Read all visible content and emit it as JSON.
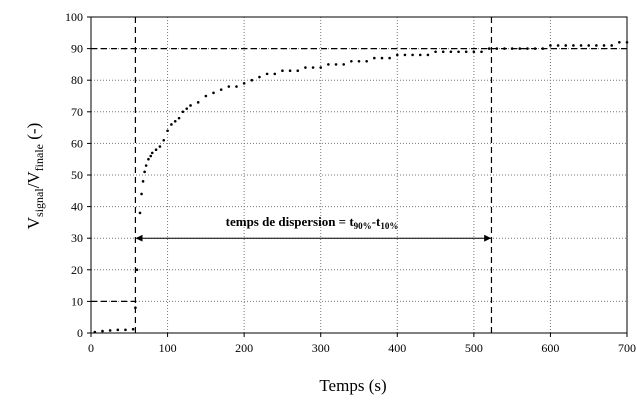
{
  "chart_data": {
    "type": "scatter",
    "title": "",
    "xlabel": "Temps (s)",
    "ylabel": {
      "main": "V",
      "sub1": "signal",
      "sep": "/V",
      "sub2": "finale",
      "unit": " (-)"
    },
    "xlim": [
      0,
      700
    ],
    "ylim": [
      0,
      100
    ],
    "x_ticks": [
      0,
      100,
      200,
      300,
      400,
      500,
      600,
      700
    ],
    "y_ticks": [
      0,
      10,
      20,
      30,
      40,
      50,
      60,
      70,
      80,
      90,
      100
    ],
    "grid": "dotted",
    "legend": "none",
    "series": [
      {
        "marker_color": "#000000",
        "x": [
          5,
          15,
          25,
          35,
          45,
          55,
          58,
          60,
          62,
          64,
          66,
          68,
          70,
          72,
          75,
          78,
          80,
          85,
          90,
          95,
          100,
          105,
          110,
          115,
          120,
          125,
          130,
          140,
          150,
          160,
          170,
          180,
          190,
          200,
          210,
          220,
          230,
          240,
          250,
          260,
          270,
          280,
          290,
          300,
          310,
          320,
          330,
          340,
          350,
          360,
          370,
          380,
          390,
          400,
          410,
          420,
          430,
          440,
          450,
          460,
          470,
          480,
          490,
          500,
          510,
          520,
          530,
          540,
          550,
          560,
          570,
          580,
          590,
          600,
          610,
          620,
          630,
          640,
          650,
          660,
          670,
          680,
          690,
          700
        ],
        "y": [
          0.3,
          0.6,
          0.8,
          1.0,
          1.0,
          1.2,
          8,
          20,
          30,
          38,
          44,
          48,
          51,
          53,
          55,
          56,
          57,
          58,
          59,
          61,
          64,
          66,
          67,
          68,
          70,
          71,
          72,
          73,
          75,
          76,
          77,
          78,
          78,
          79,
          80,
          81,
          82,
          82,
          83,
          83,
          83,
          84,
          84,
          84,
          85,
          85,
          85,
          86,
          86,
          86,
          87,
          87,
          87,
          88,
          88,
          88,
          88,
          88,
          89,
          89,
          89,
          89,
          89,
          89,
          89,
          90,
          90,
          90,
          90,
          90,
          90,
          90,
          90,
          91,
          91,
          91,
          91,
          91,
          91,
          91,
          91,
          91,
          92,
          92
        ]
      }
    ],
    "annotations": {
      "t10_x": 58,
      "t90_x": 523,
      "level_10": 10,
      "level_90": 90,
      "arrow_y": 30,
      "label_text": "temps de dispersion = t",
      "label_sub1": "90%",
      "label_mid": "-t",
      "label_sub2": "10%"
    }
  }
}
